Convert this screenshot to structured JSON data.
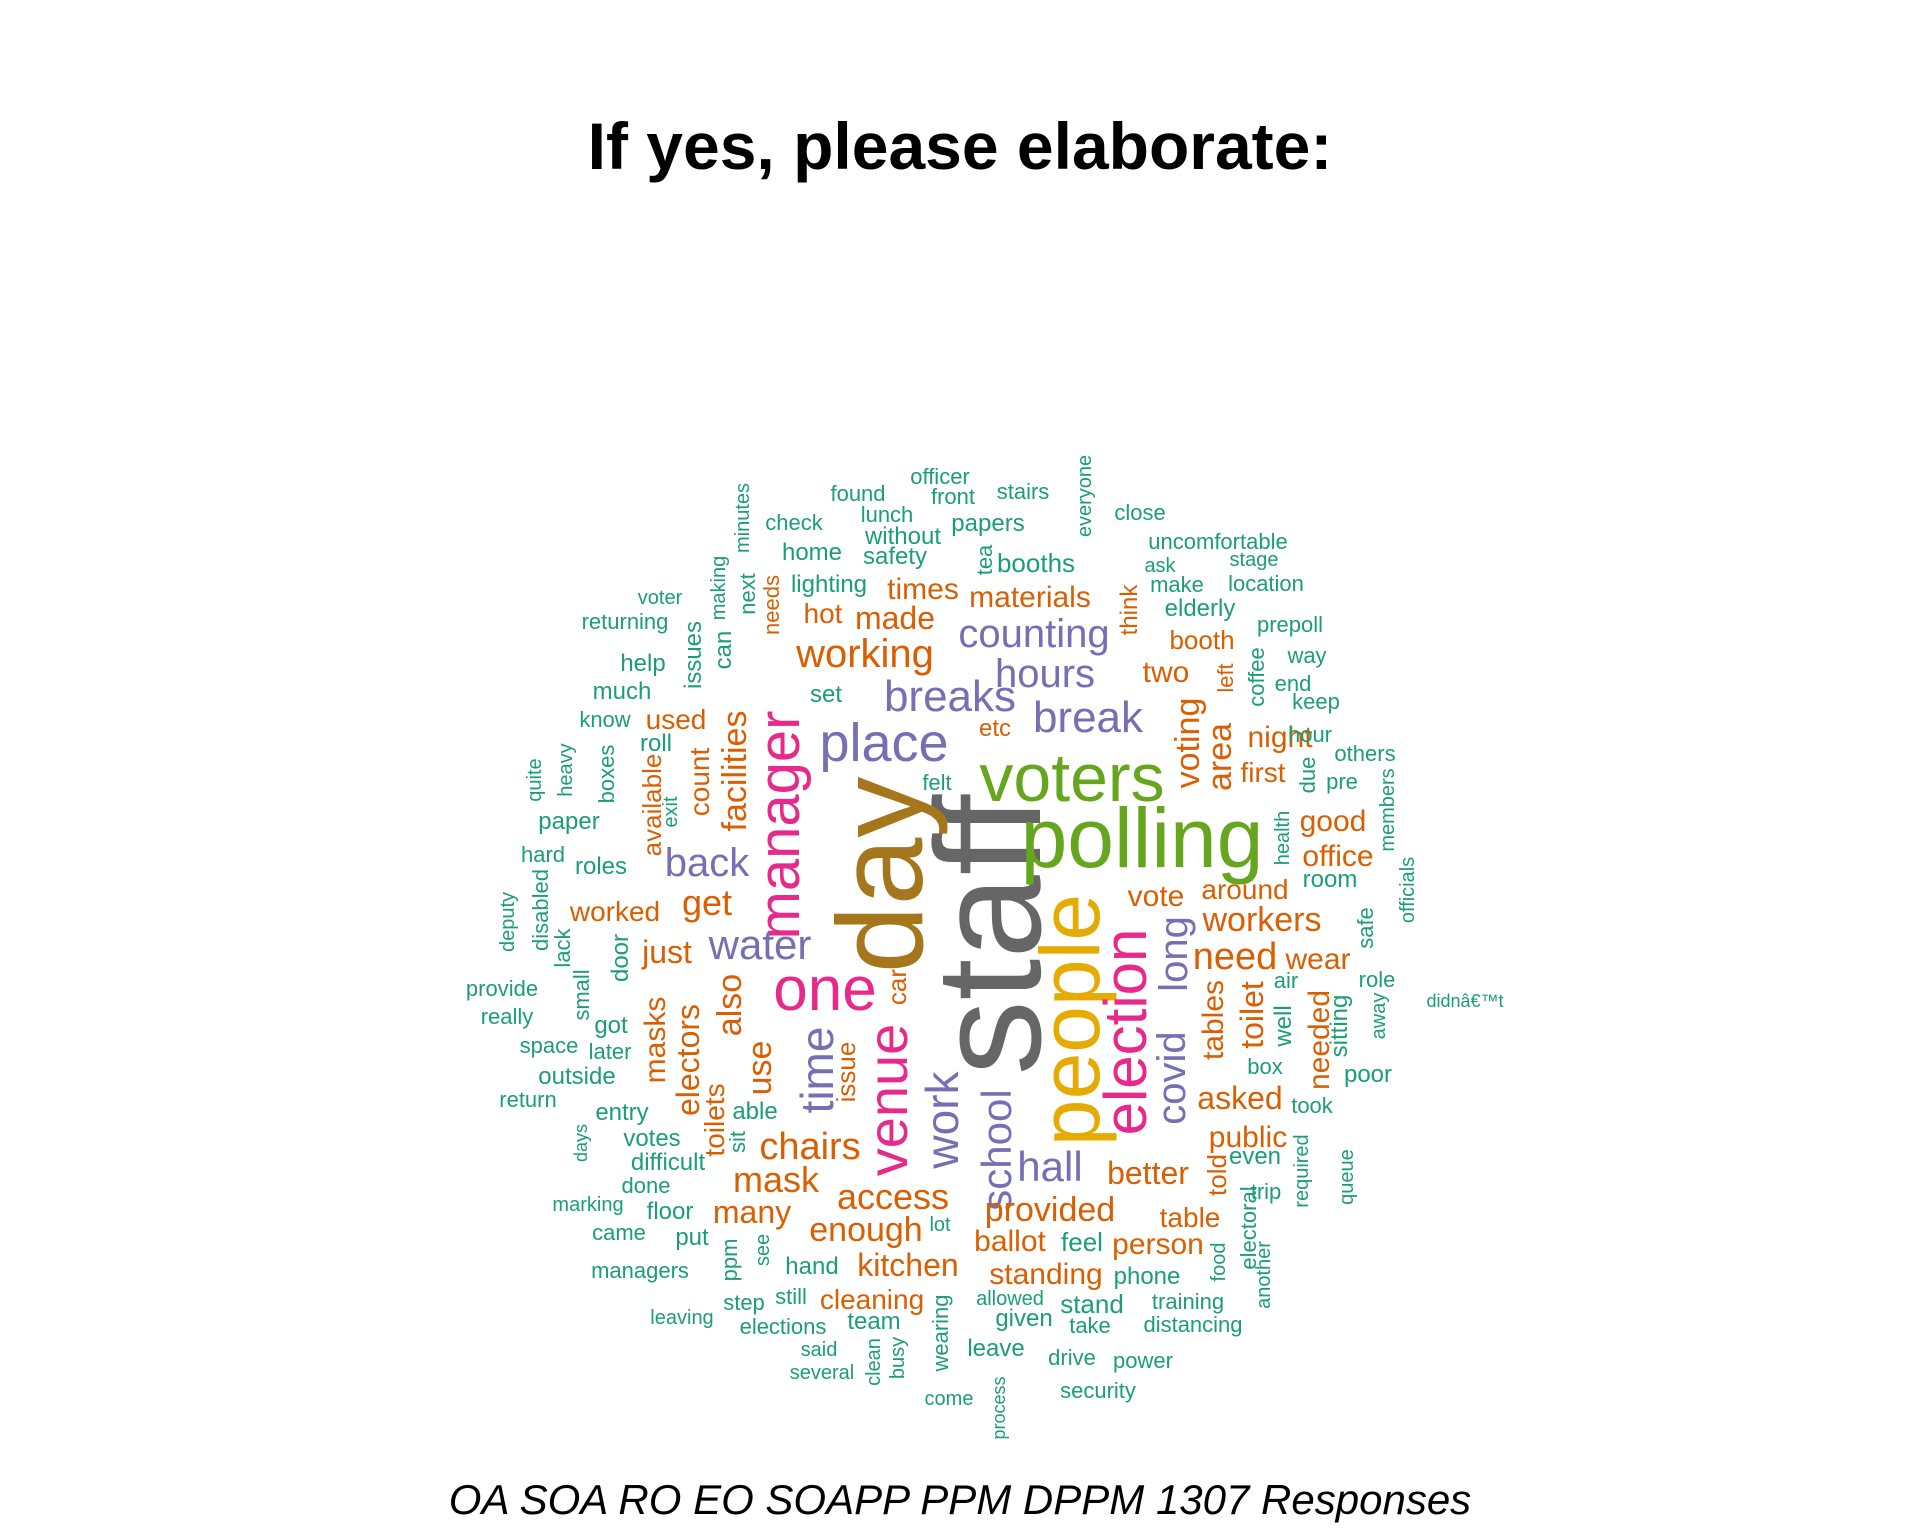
{
  "title": "If yes, please elaborate:",
  "caption": "OA SOA RO EO SOAPP PPM DPPM 1307 Responses",
  "colors": {
    "green": "#1B9E77",
    "orange": "#D95F02",
    "purple": "#7570B3",
    "pink": "#E7298A",
    "lime": "#66A61E",
    "gold": "#E6AB02",
    "brown": "#A6761D",
    "gray": "#666666"
  },
  "words": [
    {
      "text": "staff",
      "color": "gray"
    },
    {
      "text": "day",
      "color": "brown"
    },
    {
      "text": "polling",
      "color": "lime"
    },
    {
      "text": "voters",
      "color": "lime"
    },
    {
      "text": "people",
      "color": "gold"
    },
    {
      "text": "one",
      "color": "pink"
    },
    {
      "text": "manager",
      "color": "pink"
    },
    {
      "text": "election",
      "color": "pink"
    },
    {
      "text": "venue",
      "color": "pink"
    },
    {
      "text": "place",
      "color": "purple"
    },
    {
      "text": "breaks",
      "color": "purple"
    },
    {
      "text": "break",
      "color": "purple"
    },
    {
      "text": "hours",
      "color": "purple"
    },
    {
      "text": "counting",
      "color": "purple"
    },
    {
      "text": "back",
      "color": "purple"
    },
    {
      "text": "water",
      "color": "purple"
    },
    {
      "text": "time",
      "color": "purple"
    },
    {
      "text": "work",
      "color": "purple"
    },
    {
      "text": "school",
      "color": "purple"
    },
    {
      "text": "hall",
      "color": "purple"
    },
    {
      "text": "covid",
      "color": "purple"
    },
    {
      "text": "long",
      "color": "purple"
    },
    {
      "text": "working",
      "color": "orange"
    },
    {
      "text": "made",
      "color": "orange"
    },
    {
      "text": "hot",
      "color": "orange"
    },
    {
      "text": "times",
      "color": "orange"
    },
    {
      "text": "materials",
      "color": "orange"
    },
    {
      "text": "booth",
      "color": "orange"
    },
    {
      "text": "two",
      "color": "orange"
    },
    {
      "text": "etc",
      "color": "orange"
    },
    {
      "text": "facilities",
      "color": "orange"
    },
    {
      "text": "count",
      "color": "orange"
    },
    {
      "text": "available",
      "color": "orange"
    },
    {
      "text": "used",
      "color": "orange"
    },
    {
      "text": "get",
      "color": "orange"
    },
    {
      "text": "worked",
      "color": "orange"
    },
    {
      "text": "just",
      "color": "orange"
    },
    {
      "text": "also",
      "color": "orange"
    },
    {
      "text": "masks",
      "color": "orange"
    },
    {
      "text": "electors",
      "color": "orange"
    },
    {
      "text": "use",
      "color": "orange"
    },
    {
      "text": "toilets",
      "color": "orange"
    },
    {
      "text": "chairs",
      "color": "orange"
    },
    {
      "text": "mask",
      "color": "orange"
    },
    {
      "text": "many",
      "color": "orange"
    },
    {
      "text": "access",
      "color": "orange"
    },
    {
      "text": "enough",
      "color": "orange"
    },
    {
      "text": "kitchen",
      "color": "orange"
    },
    {
      "text": "ballot",
      "color": "orange"
    },
    {
      "text": "standing",
      "color": "orange"
    },
    {
      "text": "cleaning",
      "color": "orange"
    },
    {
      "text": "provided",
      "color": "orange"
    },
    {
      "text": "better",
      "color": "orange"
    },
    {
      "text": "table",
      "color": "orange"
    },
    {
      "text": "person",
      "color": "orange"
    },
    {
      "text": "public",
      "color": "orange"
    },
    {
      "text": "asked",
      "color": "orange"
    },
    {
      "text": "tables",
      "color": "orange"
    },
    {
      "text": "told",
      "color": "orange"
    },
    {
      "text": "need",
      "color": "orange"
    },
    {
      "text": "workers",
      "color": "orange"
    },
    {
      "text": "around",
      "color": "orange"
    },
    {
      "text": "vote",
      "color": "orange"
    },
    {
      "text": "wear",
      "color": "orange"
    },
    {
      "text": "toilet",
      "color": "orange"
    },
    {
      "text": "needed",
      "color": "orange"
    },
    {
      "text": "office",
      "color": "orange"
    },
    {
      "text": "good",
      "color": "orange"
    },
    {
      "text": "first",
      "color": "orange"
    },
    {
      "text": "night",
      "color": "orange"
    },
    {
      "text": "voting",
      "color": "orange"
    },
    {
      "text": "area",
      "color": "orange"
    },
    {
      "text": "left",
      "color": "orange"
    },
    {
      "text": "think",
      "color": "orange"
    },
    {
      "text": "needs",
      "color": "orange"
    },
    {
      "text": "car",
      "color": "orange"
    },
    {
      "text": "issue",
      "color": "orange"
    },
    {
      "text": "officer",
      "color": "green"
    },
    {
      "text": "stairs",
      "color": "green"
    },
    {
      "text": "found",
      "color": "green"
    },
    {
      "text": "front",
      "color": "green"
    },
    {
      "text": "lunch",
      "color": "green"
    },
    {
      "text": "check",
      "color": "green"
    },
    {
      "text": "papers",
      "color": "green"
    },
    {
      "text": "without",
      "color": "green"
    },
    {
      "text": "home",
      "color": "green"
    },
    {
      "text": "safety",
      "color": "green"
    },
    {
      "text": "everyone",
      "color": "green"
    },
    {
      "text": "close",
      "color": "green"
    },
    {
      "text": "uncomfortable",
      "color": "green"
    },
    {
      "text": "ask",
      "color": "green"
    },
    {
      "text": "stage",
      "color": "green"
    },
    {
      "text": "make",
      "color": "green"
    },
    {
      "text": "location",
      "color": "green"
    },
    {
      "text": "booths",
      "color": "green"
    },
    {
      "text": "tea",
      "color": "green"
    },
    {
      "text": "minutes",
      "color": "green"
    },
    {
      "text": "making",
      "color": "green"
    },
    {
      "text": "next",
      "color": "green"
    },
    {
      "text": "lighting",
      "color": "green"
    },
    {
      "text": "elderly",
      "color": "green"
    },
    {
      "text": "prepoll",
      "color": "green"
    },
    {
      "text": "voter",
      "color": "green"
    },
    {
      "text": "returning",
      "color": "green"
    },
    {
      "text": "can",
      "color": "green"
    },
    {
      "text": "issues",
      "color": "green"
    },
    {
      "text": "way",
      "color": "green"
    },
    {
      "text": "coffee",
      "color": "green"
    },
    {
      "text": "end",
      "color": "green"
    },
    {
      "text": "keep",
      "color": "green"
    },
    {
      "text": "help",
      "color": "green"
    },
    {
      "text": "much",
      "color": "green"
    },
    {
      "text": "set",
      "color": "green"
    },
    {
      "text": "know",
      "color": "green"
    },
    {
      "text": "hour",
      "color": "green"
    },
    {
      "text": "others",
      "color": "green"
    },
    {
      "text": "due",
      "color": "green"
    },
    {
      "text": "pre",
      "color": "green"
    },
    {
      "text": "members",
      "color": "green"
    },
    {
      "text": "roll",
      "color": "green"
    },
    {
      "text": "felt",
      "color": "green"
    },
    {
      "text": "quite",
      "color": "green"
    },
    {
      "text": "heavy",
      "color": "green"
    },
    {
      "text": "boxes",
      "color": "green"
    },
    {
      "text": "exit",
      "color": "green"
    },
    {
      "text": "paper",
      "color": "green"
    },
    {
      "text": "health",
      "color": "green"
    },
    {
      "text": "room",
      "color": "green"
    },
    {
      "text": "hard",
      "color": "green"
    },
    {
      "text": "roles",
      "color": "green"
    },
    {
      "text": "disabled",
      "color": "green"
    },
    {
      "text": "officials",
      "color": "green"
    },
    {
      "text": "deputy",
      "color": "green"
    },
    {
      "text": "lack",
      "color": "green"
    },
    {
      "text": "safe",
      "color": "green"
    },
    {
      "text": "door",
      "color": "green"
    },
    {
      "text": "provide",
      "color": "green"
    },
    {
      "text": "small",
      "color": "green"
    },
    {
      "text": "air",
      "color": "green"
    },
    {
      "text": "role",
      "color": "green"
    },
    {
      "text": "really",
      "color": "green"
    },
    {
      "text": "got",
      "color": "green"
    },
    {
      "text": "well",
      "color": "green"
    },
    {
      "text": "away",
      "color": "green"
    },
    {
      "text": "didnâ€™t",
      "color": "green"
    },
    {
      "text": "sitting",
      "color": "green"
    },
    {
      "text": "space",
      "color": "green"
    },
    {
      "text": "later",
      "color": "green"
    },
    {
      "text": "outside",
      "color": "green"
    },
    {
      "text": "box",
      "color": "green"
    },
    {
      "text": "poor",
      "color": "green"
    },
    {
      "text": "return",
      "color": "green"
    },
    {
      "text": "took",
      "color": "green"
    },
    {
      "text": "entry",
      "color": "green"
    },
    {
      "text": "able",
      "color": "green"
    },
    {
      "text": "votes",
      "color": "green"
    },
    {
      "text": "sit",
      "color": "green"
    },
    {
      "text": "days",
      "color": "green"
    },
    {
      "text": "difficult",
      "color": "green"
    },
    {
      "text": "even",
      "color": "green"
    },
    {
      "text": "required",
      "color": "green"
    },
    {
      "text": "queue",
      "color": "green"
    },
    {
      "text": "done",
      "color": "green"
    },
    {
      "text": "trip",
      "color": "green"
    },
    {
      "text": "marking",
      "color": "green"
    },
    {
      "text": "floor",
      "color": "green"
    },
    {
      "text": "came",
      "color": "green"
    },
    {
      "text": "lot",
      "color": "green"
    },
    {
      "text": "put",
      "color": "green"
    },
    {
      "text": "electoral",
      "color": "green"
    },
    {
      "text": "feel",
      "color": "green"
    },
    {
      "text": "food",
      "color": "green"
    },
    {
      "text": "managers",
      "color": "green"
    },
    {
      "text": "ppm",
      "color": "green"
    },
    {
      "text": "see",
      "color": "green"
    },
    {
      "text": "hand",
      "color": "green"
    },
    {
      "text": "phone",
      "color": "green"
    },
    {
      "text": "another",
      "color": "green"
    },
    {
      "text": "step",
      "color": "green"
    },
    {
      "text": "still",
      "color": "green"
    },
    {
      "text": "allowed",
      "color": "green"
    },
    {
      "text": "stand",
      "color": "green"
    },
    {
      "text": "training",
      "color": "green"
    },
    {
      "text": "leaving",
      "color": "green"
    },
    {
      "text": "elections",
      "color": "green"
    },
    {
      "text": "team",
      "color": "green"
    },
    {
      "text": "wearing",
      "color": "green"
    },
    {
      "text": "given",
      "color": "green"
    },
    {
      "text": "take",
      "color": "green"
    },
    {
      "text": "distancing",
      "color": "green"
    },
    {
      "text": "said",
      "color": "green"
    },
    {
      "text": "clean",
      "color": "green"
    },
    {
      "text": "busy",
      "color": "green"
    },
    {
      "text": "leave",
      "color": "green"
    },
    {
      "text": "drive",
      "color": "green"
    },
    {
      "text": "power",
      "color": "green"
    },
    {
      "text": "several",
      "color": "green"
    },
    {
      "text": "come",
      "color": "green"
    },
    {
      "text": "process",
      "color": "green"
    },
    {
      "text": "security",
      "color": "green"
    }
  ]
}
